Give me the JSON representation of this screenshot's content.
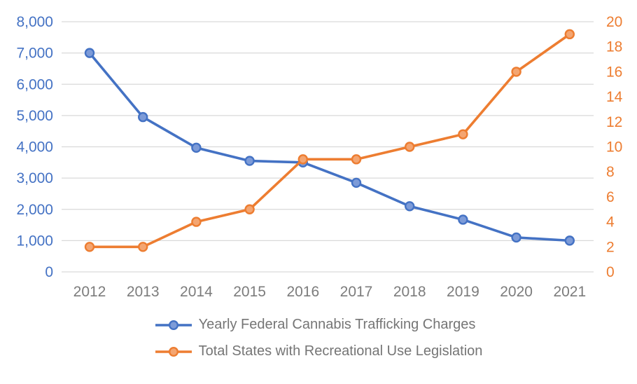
{
  "chart_data": {
    "type": "line",
    "title": "",
    "categories": [
      "2012",
      "2013",
      "2014",
      "2015",
      "2016",
      "2017",
      "2018",
      "2019",
      "2020",
      "2021"
    ],
    "series": [
      {
        "name": "Yearly Federal Cannabis Trafficking Charges",
        "axis": "left",
        "color": "#4472C4",
        "marker_fill": "#7D9BD8",
        "values": [
          7000,
          4950,
          3970,
          3550,
          3500,
          2850,
          2100,
          1670,
          1100,
          1000
        ]
      },
      {
        "name": "Total States with Recreational Use Legislation",
        "axis": "right",
        "color": "#ED7D31",
        "marker_fill": "#F4A571",
        "values": [
          2,
          2,
          4,
          5,
          9,
          9,
          10,
          11,
          16,
          19
        ]
      }
    ],
    "left_axis": {
      "min": 0,
      "max": 8000,
      "step": 1000,
      "tick_labels": [
        "0",
        "1,000",
        "2,000",
        "3,000",
        "4,000",
        "5,000",
        "6,000",
        "7,000",
        "8,000"
      ],
      "label_color": "#4472C4"
    },
    "right_axis": {
      "min": 0,
      "max": 20,
      "step": 2,
      "tick_labels": [
        "0",
        "2",
        "4",
        "6",
        "8",
        "10",
        "12",
        "14",
        "16",
        "18",
        "20"
      ],
      "label_color": "#ED7D31"
    },
    "x_axis": {
      "label_color": "#7C7C7C"
    },
    "grid": {
      "show": true,
      "color": "#D9D9D9"
    },
    "legend": {
      "position": "bottom",
      "text_color": "#757575"
    },
    "background": "#FFFFFF"
  }
}
